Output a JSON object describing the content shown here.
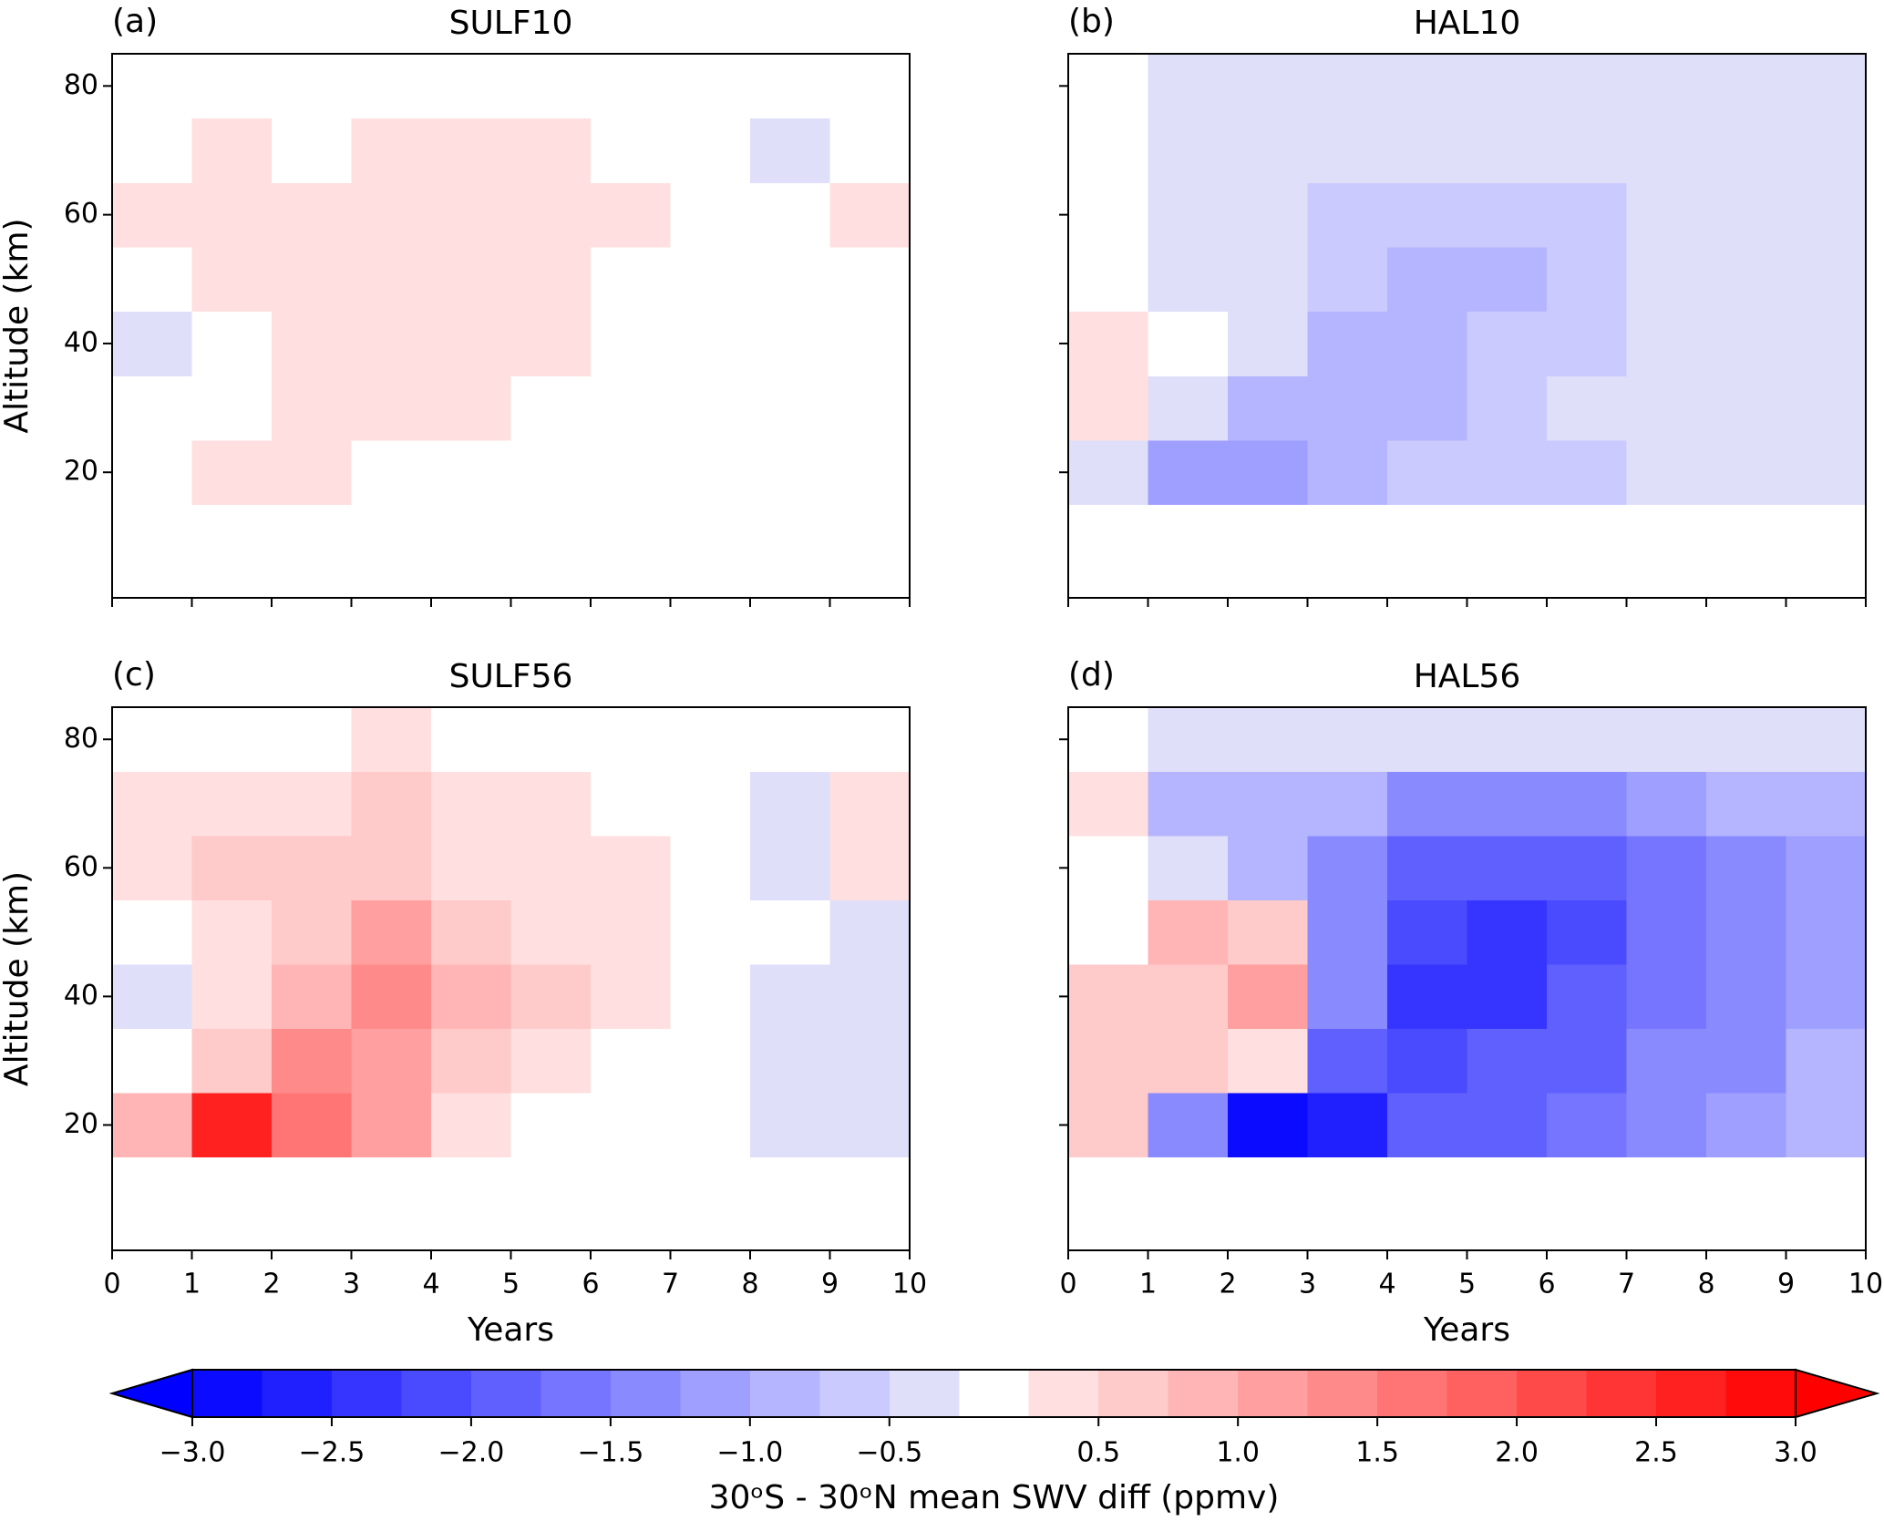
{
  "chart_data": [
    {
      "type": "contour",
      "label": "(a)",
      "title": "SULF10",
      "ylabel": "Altitude (km)",
      "x": [
        0.5,
        1.5,
        2.5,
        3.5,
        4.5,
        5.5,
        6.5,
        7.5,
        8.5,
        9.5
      ],
      "y": [
        20,
        30,
        40,
        50,
        60,
        70,
        80
      ],
      "z": [
        [
          0.2,
          0.3,
          0.3,
          0.2,
          0.1,
          0.2,
          0,
          -0.2,
          -0.2,
          -0.1
        ],
        [
          0,
          0.1,
          0.3,
          0.3,
          0.3,
          0.1,
          0,
          0,
          0,
          -0.1
        ],
        [
          -0.3,
          0,
          0.3,
          0.3,
          0.3,
          0.3,
          0.1,
          0,
          -0.1,
          0
        ],
        [
          0,
          0.3,
          0.3,
          0.3,
          0.3,
          0.3,
          0.1,
          0,
          0,
          0
        ],
        [
          0.3,
          0.4,
          0.3,
          0.3,
          0.3,
          0.3,
          0.3,
          0,
          0,
          0.3
        ],
        [
          0,
          0.3,
          0.1,
          0.3,
          0.3,
          0.3,
          0,
          0,
          -0.3,
          0.1
        ],
        [
          0,
          0,
          0,
          0,
          0,
          0,
          0,
          0,
          0,
          0
        ]
      ],
      "xlim": [
        0,
        10
      ],
      "xticks": [
        0,
        1,
        2,
        3,
        4,
        5,
        6,
        7,
        8,
        9,
        10
      ],
      "show_xticklabels": false,
      "ylim": [
        0.5,
        85
      ],
      "yticks": [
        20,
        40,
        60,
        80
      ],
      "show_yticklabels": true
    },
    {
      "type": "contour",
      "label": "(b)",
      "title": "HAL10",
      "x": [
        0.5,
        1.5,
        2.5,
        3.5,
        4.5,
        5.5,
        6.5,
        7.5,
        8.5,
        9.5
      ],
      "y": [
        20,
        30,
        40,
        50,
        60,
        70,
        80
      ],
      "z": [
        [
          -0.3,
          -1.2,
          -1.1,
          -0.8,
          -0.7,
          -0.7,
          -0.6,
          -0.5,
          -0.4,
          -0.4
        ],
        [
          0.3,
          -0.5,
          -0.8,
          -0.8,
          -0.8,
          -0.6,
          -0.5,
          -0.4,
          -0.3,
          -0.3
        ],
        [
          0.3,
          0.1,
          -0.5,
          -0.8,
          -0.8,
          -0.7,
          -0.6,
          -0.4,
          -0.3,
          -0.3
        ],
        [
          0.1,
          -0.3,
          -0.5,
          -0.7,
          -0.8,
          -0.8,
          -0.7,
          -0.5,
          -0.4,
          -0.3
        ],
        [
          0,
          -0.3,
          -0.3,
          -0.6,
          -0.6,
          -0.6,
          -0.6,
          -0.5,
          -0.3,
          -0.3
        ],
        [
          0,
          -0.3,
          -0.3,
          -0.3,
          -0.3,
          -0.4,
          -0.3,
          -0.3,
          -0.3,
          -0.3
        ],
        [
          0,
          -0.3,
          -0.3,
          -0.3,
          -0.3,
          -0.3,
          -0.3,
          -0.3,
          -0.3,
          -0.3
        ]
      ],
      "xlim": [
        0,
        10
      ],
      "xticks": [
        0,
        1,
        2,
        3,
        4,
        5,
        6,
        7,
        8,
        9,
        10
      ],
      "show_xticklabels": false,
      "ylim": [
        0.5,
        85
      ],
      "yticks": [
        20,
        40,
        60,
        80
      ],
      "show_yticklabels": false
    },
    {
      "type": "contour",
      "label": "(c)",
      "title": "SULF56",
      "ylabel": "Altitude (km)",
      "xlabel": "Years",
      "x": [
        0.5,
        1.5,
        2.5,
        3.5,
        4.5,
        5.5,
        6.5,
        7.5,
        8.5,
        9.5
      ],
      "y": [
        20,
        30,
        40,
        50,
        60,
        70,
        80
      ],
      "z": [
        [
          0.8,
          2.5,
          1.6,
          1.0,
          0.3,
          0,
          0,
          0.1,
          -0.3,
          -0.3
        ],
        [
          0.2,
          0.5,
          1.3,
          1.2,
          0.6,
          0.3,
          0.1,
          0,
          -0.3,
          -0.3
        ],
        [
          -0.3,
          0.3,
          0.8,
          1.4,
          0.8,
          0.5,
          0.3,
          0,
          -0.3,
          -0.3
        ],
        [
          0.1,
          0.3,
          0.6,
          1.0,
          0.7,
          0.4,
          0.3,
          0,
          0,
          -0.3
        ],
        [
          0.4,
          0.6,
          0.5,
          0.7,
          0.4,
          0.3,
          0.3,
          0,
          -0.3,
          0.3
        ],
        [
          0.3,
          0.3,
          0.3,
          0.6,
          0.3,
          0.3,
          0,
          0,
          -0.3,
          0.3
        ],
        [
          0,
          0,
          0,
          0.3,
          0,
          0,
          0,
          0,
          0,
          0
        ]
      ],
      "xlim": [
        0,
        10
      ],
      "xticks": [
        0,
        1,
        2,
        3,
        4,
        5,
        6,
        7,
        8,
        9,
        10
      ],
      "show_xticklabels": true,
      "ylim": [
        0.5,
        85
      ],
      "yticks": [
        20,
        40,
        60,
        80
      ],
      "show_yticklabels": true
    },
    {
      "type": "contour",
      "label": "(d)",
      "title": "HAL56",
      "xlabel": "Years",
      "x": [
        0.5,
        1.5,
        2.5,
        3.5,
        4.5,
        5.5,
        6.5,
        7.5,
        8.5,
        9.5
      ],
      "y": [
        20,
        30,
        40,
        50,
        60,
        70,
        80
      ],
      "z": [
        [
          0.5,
          -1.5,
          -2.8,
          -2.6,
          -2.0,
          -1.8,
          -1.6,
          -1.4,
          -1.2,
          -1.0
        ],
        [
          0.5,
          0.6,
          0.4,
          -2.0,
          -2.2,
          -2.0,
          -1.8,
          -1.5,
          -1.3,
          -1.0
        ],
        [
          0.5,
          0.6,
          1.0,
          -1.5,
          -2.3,
          -2.3,
          -2.0,
          -1.6,
          -1.4,
          -1.1
        ],
        [
          0.2,
          0.8,
          0.7,
          -1.3,
          -2.2,
          -2.3,
          -2.1,
          -1.7,
          -1.5,
          -1.2
        ],
        [
          0.2,
          -0.3,
          -0.8,
          -1.3,
          -1.8,
          -2.0,
          -2.0,
          -1.7,
          -1.5,
          -1.2
        ],
        [
          0.3,
          -1.0,
          -1.0,
          -0.8,
          -1.3,
          -1.5,
          -1.5,
          -1.2,
          -1.0,
          -0.8
        ],
        [
          0,
          -0.3,
          -0.3,
          -0.3,
          -0.3,
          -0.3,
          -0.3,
          -0.3,
          -0.3,
          -0.3
        ]
      ],
      "xlim": [
        0,
        10
      ],
      "xticks": [
        0,
        1,
        2,
        3,
        4,
        5,
        6,
        7,
        8,
        9,
        10
      ],
      "show_xticklabels": true,
      "ylim": [
        0.5,
        85
      ],
      "yticks": [
        20,
        40,
        60,
        80
      ],
      "show_yticklabels": false
    },
    {
      "type": "colorbar",
      "label": "30ᵒS - 30ᵒN mean SWV diff (ppmv)",
      "levels": [
        -3,
        -2.75,
        -2.5,
        -2.25,
        -2,
        -1.75,
        -1.5,
        -1.25,
        -1,
        -0.75,
        -0.5,
        -0.25,
        0.25,
        0.5,
        0.75,
        1,
        1.25,
        1.5,
        1.75,
        2,
        2.25,
        2.5,
        2.75,
        3
      ],
      "colors": [
        "#0b0bff",
        "#2020ff",
        "#3535ff",
        "#4a4aff",
        "#6060ff",
        "#7575ff",
        "#8a8aff",
        "#9f9fff",
        "#b5b5ff",
        "#cacaff",
        "#dfdffa",
        "#ffffff",
        "#ffdfdf",
        "#ffcaca",
        "#ffb5b5",
        "#ff9f9f",
        "#ff8a8a",
        "#ff7575",
        "#ff6060",
        "#ff4a4a",
        "#ff3535",
        "#ff2020",
        "#ff0b0b"
      ],
      "under_color": "#0000ff",
      "over_color": "#ff0000",
      "ticks": [
        {
          "value": -3,
          "label": "−3.0"
        },
        {
          "value": -2.5,
          "label": "−2.5"
        },
        {
          "value": -2,
          "label": "−2.0"
        },
        {
          "value": -1.5,
          "label": "−1.5"
        },
        {
          "value": -1,
          "label": "−1.0"
        },
        {
          "value": -0.5,
          "label": "−0.5"
        },
        0.5,
        {
          "value": 1,
          "label": "1.0"
        },
        1.5,
        {
          "value": 2,
          "label": "2.0"
        },
        2.5,
        {
          "value": 3,
          "label": "3.0"
        }
      ]
    }
  ]
}
